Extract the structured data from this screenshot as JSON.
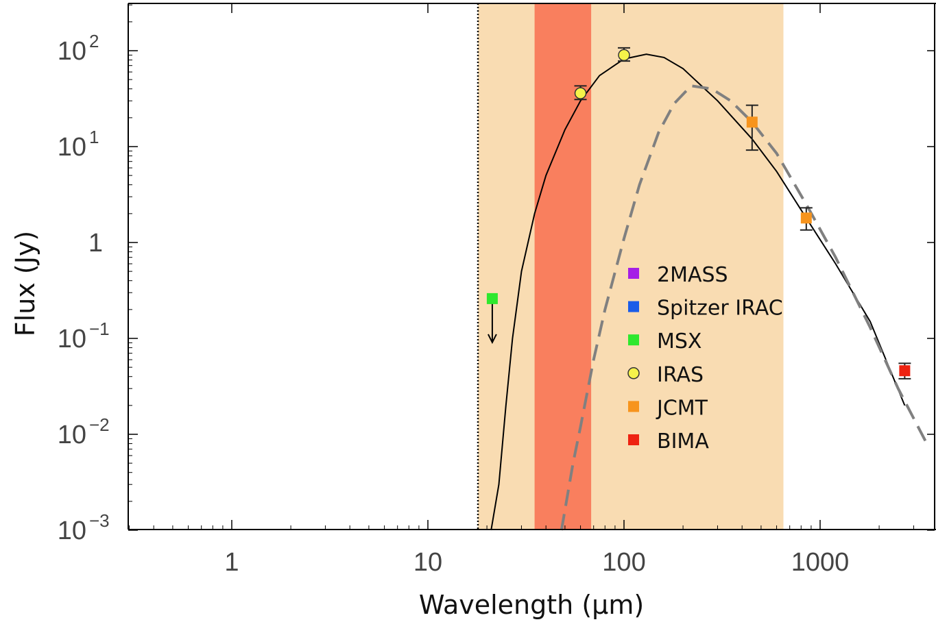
{
  "chart_data": {
    "type": "scatter",
    "xlabel": "Wavelength (µm)",
    "ylabel": "Flux (Jy)",
    "x_scale": "log",
    "y_scale": "log",
    "xlim": [
      0.3,
      3500
    ],
    "ylim": [
      0.001,
      300
    ],
    "x_ticks": [
      {
        "value": 1,
        "label": "1"
      },
      {
        "value": 10,
        "label": "10"
      },
      {
        "value": 100,
        "label": "100"
      },
      {
        "value": 1000,
        "label": "1000"
      }
    ],
    "y_ticks": [
      {
        "value": 100,
        "base": "10",
        "exp": "2"
      },
      {
        "value": 10,
        "base": "10",
        "exp": "1"
      },
      {
        "value": 1,
        "base": "1",
        "exp": ""
      },
      {
        "value": 0.1,
        "base": "10",
        "exp": "−1"
      },
      {
        "value": 0.01,
        "base": "10",
        "exp": "−2"
      },
      {
        "value": 0.001,
        "base": "10",
        "exp": "−3"
      }
    ],
    "vertical_line_x": 18,
    "shaded_bands": [
      {
        "x_from": 18,
        "x_to": 650,
        "color": "#f9dcb2"
      },
      {
        "x_from": 35,
        "x_to": 68,
        "color": "#f97f5e"
      }
    ],
    "legend": [
      {
        "label": "2MASS",
        "color": "#a51ee6",
        "marker": "square"
      },
      {
        "label": "Spitzer IRAC",
        "color": "#1a5ce8",
        "marker": "square"
      },
      {
        "label": "MSX",
        "color": "#2ee82e",
        "marker": "square"
      },
      {
        "label": "IRAS",
        "color": "#f5f24a",
        "marker": "circle"
      },
      {
        "label": "JCMT",
        "color": "#f7941d",
        "marker": "square"
      },
      {
        "label": "BIMA",
        "color": "#ee2211",
        "marker": "square"
      }
    ],
    "series": [
      {
        "name": "MSX",
        "points": [
          {
            "x": 21.3,
            "y": 0.26,
            "upper_limit": true
          }
        ]
      },
      {
        "name": "IRAS",
        "points": [
          {
            "x": 60,
            "y": 36,
            "err_low": 31,
            "err_high": 43
          },
          {
            "x": 100,
            "y": 90,
            "err_low": 78,
            "err_high": 107
          }
        ]
      },
      {
        "name": "JCMT",
        "points": [
          {
            "x": 450,
            "y": 18,
            "err_low": 9.2,
            "err_high": 27
          },
          {
            "x": 850,
            "y": 1.8,
            "err_low": 1.35,
            "err_high": 2.3
          }
        ]
      },
      {
        "name": "BIMA",
        "points": [
          {
            "x": 2700,
            "y": 0.046,
            "err_low": 0.038,
            "err_high": 0.055
          }
        ]
      }
    ],
    "curves": [
      {
        "style": "solid",
        "color": "#000000",
        "points": [
          [
            21,
            0.001
          ],
          [
            23,
            0.003
          ],
          [
            25,
            0.02
          ],
          [
            27,
            0.1
          ],
          [
            30,
            0.5
          ],
          [
            35,
            2
          ],
          [
            40,
            5
          ],
          [
            50,
            15
          ],
          [
            60,
            30
          ],
          [
            75,
            55
          ],
          [
            100,
            82
          ],
          [
            130,
            92
          ],
          [
            160,
            85
          ],
          [
            200,
            65
          ],
          [
            300,
            30
          ],
          [
            450,
            12
          ],
          [
            600,
            5.5
          ],
          [
            850,
            1.8
          ],
          [
            1200,
            0.6
          ],
          [
            1800,
            0.15
          ],
          [
            2700,
            0.02
          ]
        ]
      },
      {
        "style": "dashed",
        "color": "#808080",
        "points": [
          [
            48,
            0.001
          ],
          [
            55,
            0.005
          ],
          [
            60,
            0.012
          ],
          [
            70,
            0.06
          ],
          [
            80,
            0.2
          ],
          [
            100,
            1.1
          ],
          [
            120,
            4
          ],
          [
            150,
            14
          ],
          [
            180,
            28
          ],
          [
            220,
            43
          ],
          [
            280,
            40
          ],
          [
            350,
            30
          ],
          [
            450,
            18
          ],
          [
            600,
            8.5
          ],
          [
            850,
            2.5
          ],
          [
            1200,
            0.7
          ],
          [
            1800,
            0.13
          ],
          [
            2500,
            0.03
          ],
          [
            3500,
            0.008
          ]
        ]
      }
    ]
  }
}
